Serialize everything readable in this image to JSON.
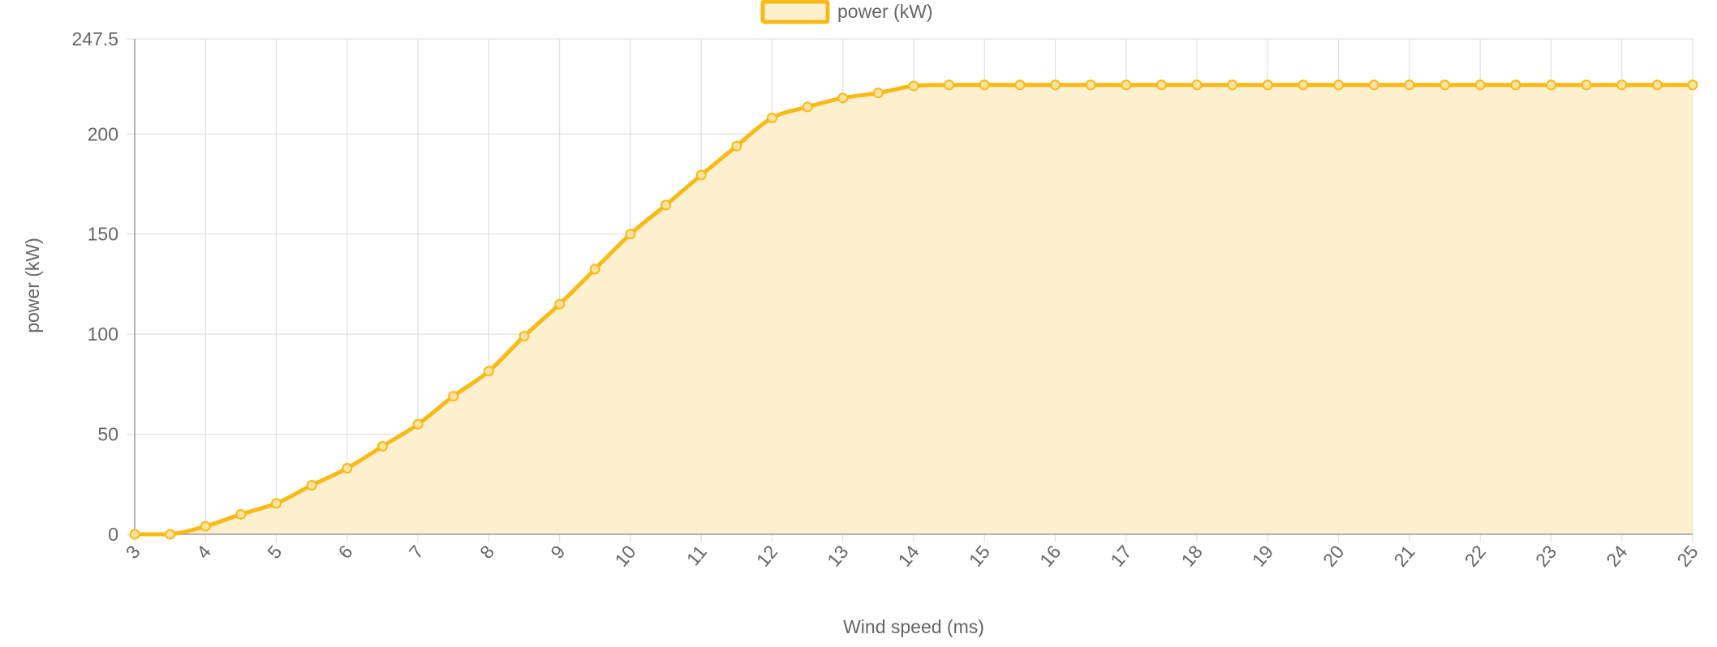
{
  "chart_data": {
    "type": "area",
    "title": "",
    "xlabel": "Wind speed (ms)",
    "ylabel": "power (kW)",
    "legend_position": "top-center",
    "grid": true,
    "xlim": [
      3,
      25
    ],
    "ylim": [
      0,
      247.5
    ],
    "x_ticks": [
      "3",
      "4",
      "5",
      "6",
      "7",
      "8",
      "9",
      "10",
      "11",
      "12",
      "13",
      "14",
      "15",
      "16",
      "17",
      "18",
      "19",
      "20",
      "21",
      "22",
      "23",
      "24",
      "25"
    ],
    "y_ticks": [
      "0",
      "50",
      "100",
      "150",
      "200",
      "247.5"
    ],
    "series": [
      {
        "name": "power (kW)",
        "color": "#f9b916",
        "fill": "#fdf0cf",
        "x": [
          3,
          3.5,
          4,
          4.5,
          5,
          5.5,
          6,
          6.5,
          7,
          7.5,
          8,
          8.5,
          9,
          9.5,
          10,
          10.5,
          11,
          11.5,
          12,
          12.5,
          13,
          13.5,
          14,
          14.5,
          15,
          15.5,
          16,
          16.5,
          17,
          17.5,
          18,
          18.5,
          19,
          19.5,
          20,
          20.5,
          21,
          21.5,
          22,
          22.5,
          23,
          23.5,
          24,
          24.5,
          25
        ],
        "values": [
          0,
          0,
          4,
          10,
          15.5,
          24.5,
          33,
          44,
          55,
          69,
          81.5,
          99,
          115,
          132.5,
          150,
          164.5,
          179.5,
          194,
          208,
          213.5,
          218,
          220.5,
          224,
          224.5,
          224.5,
          224.5,
          224.5,
          224.5,
          224.5,
          224.5,
          224.5,
          224.5,
          224.5,
          224.5,
          224.5,
          224.5,
          224.5,
          224.5,
          224.5,
          224.5,
          224.5,
          224.5,
          224.5,
          224.5,
          224.5
        ]
      }
    ]
  }
}
